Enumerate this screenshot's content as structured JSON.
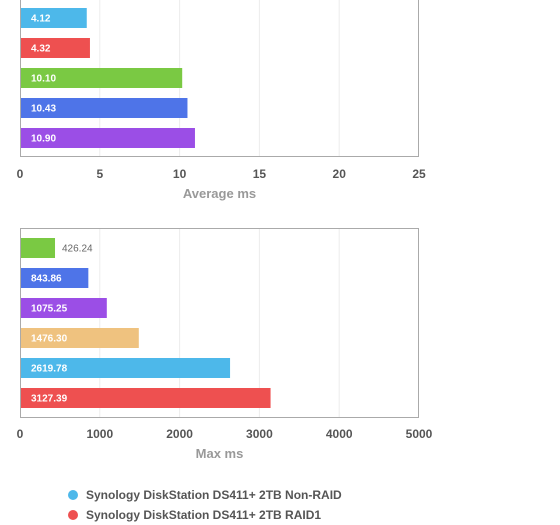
{
  "chart_data": [
    {
      "type": "bar",
      "orientation": "horizontal",
      "xlabel": "Average ms",
      "xlim": [
        0,
        25
      ],
      "xticks": [
        0,
        5,
        10,
        15,
        20,
        25
      ],
      "grid": true,
      "bars": [
        {
          "value": 4.12,
          "label": "4.12",
          "color": "#4db8ea"
        },
        {
          "value": 4.32,
          "label": "4.32",
          "color": "#ee5050"
        },
        {
          "value": 10.1,
          "label": "10.10",
          "color": "#7ac943"
        },
        {
          "value": 10.43,
          "label": "10.43",
          "color": "#4e74e8"
        },
        {
          "value": 10.9,
          "label": "10.90",
          "color": "#9b4ee6"
        }
      ]
    },
    {
      "type": "bar",
      "orientation": "horizontal",
      "xlabel": "Max ms",
      "xlim": [
        0,
        5000
      ],
      "xticks": [
        0,
        1000,
        2000,
        3000,
        4000,
        5000
      ],
      "grid": true,
      "bars": [
        {
          "value": 426.24,
          "label": "426.24",
          "color": "#7ac943"
        },
        {
          "value": 843.86,
          "label": "843.86",
          "color": "#4e74e8"
        },
        {
          "value": 1075.25,
          "label": "1075.25",
          "color": "#9b4ee6"
        },
        {
          "value": 1476.3,
          "label": "1476.30",
          "color": "#efc27f"
        },
        {
          "value": 2619.78,
          "label": "2619.78",
          "color": "#4db8ea"
        },
        {
          "value": 3127.39,
          "label": "3127.39",
          "color": "#ee5050"
        }
      ]
    }
  ],
  "legend": [
    {
      "label": "Synology DiskStation DS411+ 2TB Non-RAID",
      "color": "#4db8ea"
    },
    {
      "label": "Synology DiskStation DS411+ 2TB RAID1",
      "color": "#ee5050"
    }
  ]
}
